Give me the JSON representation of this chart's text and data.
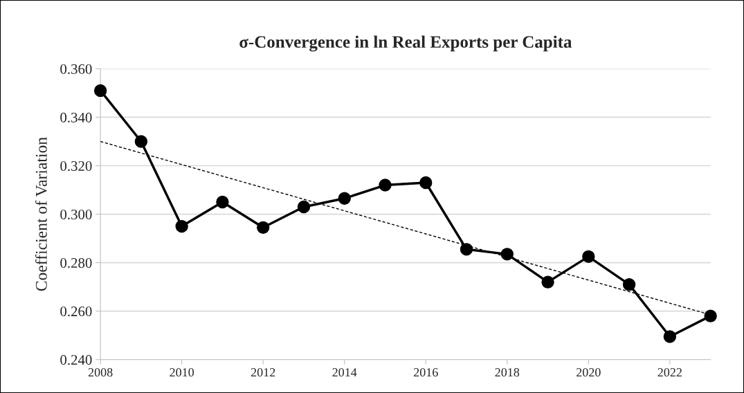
{
  "chart_data": {
    "type": "line",
    "title": "σ-Convergence in ln Real Exports per Capita",
    "ylabel": "Coefficient of Variation",
    "x": [
      2008,
      2009,
      2010,
      2011,
      2012,
      2013,
      2014,
      2015,
      2016,
      2017,
      2018,
      2019,
      2020,
      2021,
      2022,
      2023
    ],
    "series": [
      {
        "color": "#000000",
        "marker": "circle",
        "line_style": "solid",
        "values": [
          0.351,
          0.33,
          0.295,
          0.305,
          0.2945,
          0.303,
          0.3065,
          0.312,
          0.313,
          0.2855,
          0.2835,
          0.272,
          0.2825,
          0.271,
          0.2495,
          0.258
        ]
      },
      {
        "type": "line",
        "color": "#000000",
        "marker": "none",
        "line_style": "dashed",
        "x": [
          2008,
          2023
        ],
        "values": [
          0.33,
          0.2585
        ]
      }
    ],
    "xlim": [
      2008,
      2023
    ],
    "xticks": [
      2008,
      2010,
      2012,
      2014,
      2016,
      2018,
      2020,
      2022
    ],
    "ylim": [
      0.24,
      0.36
    ],
    "yticks": [
      {
        "value": 0.24,
        "label": "0.240"
      },
      {
        "value": 0.26,
        "label": "0.260"
      },
      {
        "value": 0.28,
        "label": "0.280"
      },
      {
        "value": 0.3,
        "label": "0.300"
      },
      {
        "value": 0.32,
        "label": "0.320"
      },
      {
        "value": 0.34,
        "label": "0.340"
      },
      {
        "value": 0.36,
        "label": "0.360"
      }
    ],
    "grid": "y"
  }
}
